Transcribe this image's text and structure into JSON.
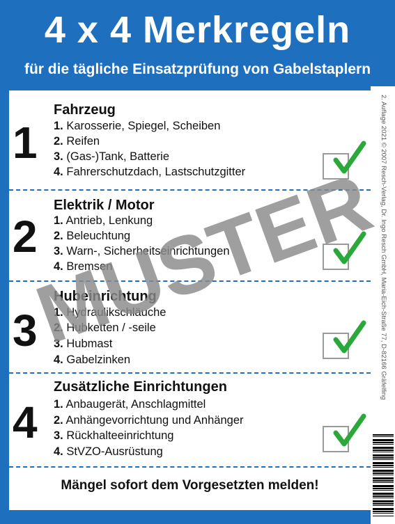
{
  "header": {
    "title": "4 x 4 Merkregeln",
    "subtitle": "für die  tägliche Einsatzprüfung von Gabelstaplern"
  },
  "sections": [
    {
      "number": "1",
      "title": "Fahrzeug",
      "items": [
        {
          "num": "1.",
          "text": "Karosserie, Spiegel, Scheiben"
        },
        {
          "num": "2.",
          "text": "Reifen"
        },
        {
          "num": "3.",
          "text": "(Gas-)Tank, Batterie"
        },
        {
          "num": "4.",
          "text": "Fahrerschutzdach, Lastschutzgitter"
        }
      ]
    },
    {
      "number": "2",
      "title": "Elektrik / Motor",
      "items": [
        {
          "num": "1.",
          "text": "Antrieb, Lenkung"
        },
        {
          "num": "2.",
          "text": "Beleuchtung"
        },
        {
          "num": "3.",
          "text": "Warn-, Sicherheitseinrichtungen"
        },
        {
          "num": "4.",
          "text": "Bremsen"
        }
      ]
    },
    {
      "number": "3",
      "title": "Hubeinrichtung",
      "items": [
        {
          "num": "1.",
          "text": "Hydraulikschläuche"
        },
        {
          "num": "2.",
          "text": "Hubketten / -seile"
        },
        {
          "num": "3.",
          "text": "Hubmast"
        },
        {
          "num": "4.",
          "text": "Gabelzinken"
        }
      ]
    },
    {
      "number": "4",
      "title": "Zusätzliche Einrichtungen",
      "items": [
        {
          "num": "1.",
          "text": "Anbaugerät, Anschlagmittel"
        },
        {
          "num": "2.",
          "text": "Anhängevorrichtung und Anhänger"
        },
        {
          "num": "3.",
          "text": "Rückhalteeinrichtung"
        },
        {
          "num": "4.",
          "text": "StVZO-Ausrüstung"
        }
      ]
    }
  ],
  "footer": "Mängel sofort dem Vorgesetzten melden!",
  "side_text": "2. Auflage 2021 © 2007 Resch-Verlag, Dr. Ingo Resch GmbH, Maria-Eich-Straße 77, D-82166 Gräfelfing",
  "watermark": "MUSTER",
  "colors": {
    "brand_blue": "#1f6fbf",
    "check_green": "#2aa83a",
    "watermark_gray": "#8a8a8a"
  }
}
